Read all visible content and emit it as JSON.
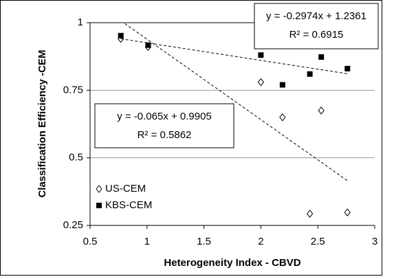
{
  "chart_data": {
    "type": "scatter",
    "x_label": "Heterogeneity Index - CBVD",
    "y_label": "Classification Efficiency -CEM",
    "xlim": [
      0.5,
      3
    ],
    "xticks": [
      0.5,
      1,
      1.5,
      2,
      2.5,
      3
    ],
    "ylim": [
      0.25,
      1
    ],
    "yticks": [
      0.25,
      0.5,
      0.75,
      1
    ],
    "grid": true,
    "legend": "lower left",
    "series": [
      {
        "name": "US-CEM",
        "color": "#000000",
        "marker": "open-diamond",
        "x": [
          0.77,
          1.01,
          2.0,
          2.19,
          2.53,
          2.43,
          2.76
        ],
        "values": [
          0.94,
          0.91,
          0.78,
          0.65,
          0.675,
          0.293,
          0.298
        ],
        "trendline": {
          "slope": -0.2974,
          "intercept": 1.2361,
          "equation": "y = -0.2974x + 1.2361",
          "r_squared": {
            "value": 0.6915,
            "label": "R² = 0.6915"
          }
        }
      },
      {
        "name": "KBS-CEM",
        "color": "#000000",
        "marker": "filled-square",
        "x": [
          0.77,
          1.01,
          2.0,
          2.19,
          2.43,
          2.53,
          2.76
        ],
        "values": [
          0.952,
          0.917,
          0.88,
          0.77,
          0.81,
          0.873,
          0.83
        ],
        "trendline": {
          "slope": -0.065,
          "intercept": 0.9905,
          "equation": "y = -0.065x + 0.9905",
          "r_squared": {
            "value": 0.5862,
            "label": "R² = 0.5862"
          }
        }
      }
    ]
  }
}
